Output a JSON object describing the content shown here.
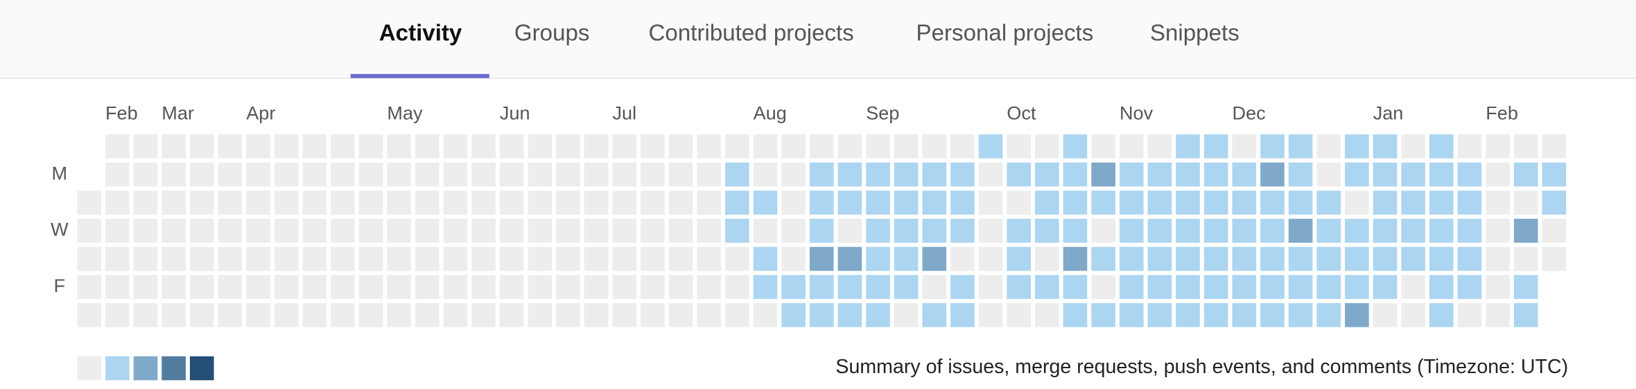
{
  "tabs": [
    "Activity",
    "Groups",
    "Contributed projects",
    "Personal projects",
    "Snippets"
  ],
  "active_tab": 0,
  "calendar": {
    "week_labels": [
      null,
      "Feb",
      null,
      "Mar",
      null,
      null,
      "Apr",
      null,
      null,
      null,
      null,
      "May",
      null,
      null,
      null,
      "Jun",
      null,
      null,
      null,
      "Jul",
      null,
      null,
      null,
      null,
      "Aug",
      null,
      null,
      null,
      "Sep",
      null,
      null,
      null,
      null,
      "Oct",
      null,
      null,
      null,
      "Nov",
      null,
      null,
      null,
      "Dec",
      null,
      null,
      null,
      null,
      "Jan",
      null,
      null,
      null,
      "Feb",
      null,
      null
    ],
    "day_labels": [
      null,
      "M",
      null,
      "W",
      null,
      "F",
      null
    ],
    "level_colors": [
      "#ededed",
      "#acd5f2",
      "#7fa8c9",
      "#527ba0",
      "#254e77"
    ],
    "rows": [
      [
        null,
        0,
        0,
        0,
        0,
        0,
        0,
        0,
        0,
        0,
        0,
        0,
        0,
        0,
        0,
        0,
        0,
        0,
        0,
        0,
        0,
        0,
        0,
        0,
        0,
        0,
        0,
        0,
        0,
        0,
        0,
        0,
        1,
        0,
        0,
        1,
        0,
        0,
        0,
        1,
        1,
        0,
        1,
        1,
        0,
        1,
        1,
        0,
        1,
        0,
        0,
        0,
        0
      ],
      [
        null,
        0,
        0,
        0,
        0,
        0,
        0,
        0,
        0,
        0,
        0,
        0,
        0,
        0,
        0,
        0,
        0,
        0,
        0,
        0,
        0,
        0,
        0,
        1,
        0,
        0,
        1,
        1,
        1,
        1,
        1,
        1,
        0,
        1,
        1,
        1,
        2,
        1,
        1,
        1,
        1,
        1,
        2,
        1,
        0,
        1,
        1,
        1,
        1,
        1,
        0,
        1,
        1
      ],
      [
        0,
        0,
        0,
        0,
        0,
        0,
        0,
        0,
        0,
        0,
        0,
        0,
        0,
        0,
        0,
        0,
        0,
        0,
        0,
        0,
        0,
        0,
        0,
        1,
        1,
        0,
        1,
        1,
        1,
        1,
        1,
        1,
        0,
        0,
        1,
        1,
        1,
        1,
        1,
        1,
        1,
        1,
        1,
        1,
        1,
        0,
        1,
        1,
        1,
        1,
        0,
        0,
        1
      ],
      [
        0,
        0,
        0,
        0,
        0,
        0,
        0,
        0,
        0,
        0,
        0,
        0,
        0,
        0,
        0,
        0,
        0,
        0,
        0,
        0,
        0,
        0,
        0,
        1,
        0,
        0,
        1,
        0,
        1,
        1,
        1,
        1,
        0,
        1,
        1,
        1,
        0,
        1,
        1,
        1,
        1,
        1,
        1,
        2,
        1,
        1,
        1,
        1,
        1,
        1,
        0,
        2,
        0
      ],
      [
        0,
        0,
        0,
        0,
        0,
        0,
        0,
        0,
        0,
        0,
        0,
        0,
        0,
        0,
        0,
        0,
        0,
        0,
        0,
        0,
        0,
        0,
        0,
        0,
        1,
        0,
        2,
        2,
        1,
        1,
        2,
        0,
        0,
        1,
        0,
        2,
        1,
        1,
        1,
        1,
        1,
        1,
        1,
        1,
        1,
        1,
        1,
        1,
        1,
        1,
        0,
        0,
        0
      ],
      [
        0,
        0,
        0,
        0,
        0,
        0,
        0,
        0,
        0,
        0,
        0,
        0,
        0,
        0,
        0,
        0,
        0,
        0,
        0,
        0,
        0,
        0,
        0,
        0,
        1,
        1,
        1,
        1,
        1,
        1,
        0,
        1,
        0,
        1,
        1,
        1,
        0,
        1,
        1,
        1,
        1,
        1,
        1,
        1,
        1,
        1,
        1,
        0,
        1,
        1,
        0,
        1,
        null
      ],
      [
        0,
        0,
        0,
        0,
        0,
        0,
        0,
        0,
        0,
        0,
        0,
        0,
        0,
        0,
        0,
        0,
        0,
        0,
        0,
        0,
        0,
        0,
        0,
        0,
        0,
        1,
        1,
        1,
        1,
        0,
        1,
        1,
        0,
        0,
        0,
        1,
        1,
        1,
        1,
        1,
        1,
        1,
        1,
        1,
        1,
        2,
        0,
        0,
        1,
        0,
        0,
        1,
        null
      ]
    ],
    "summary": "Summary of issues, merge requests, push events, and comments (Timezone: UTC)"
  }
}
